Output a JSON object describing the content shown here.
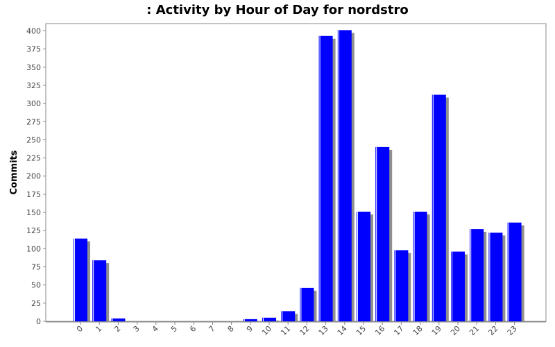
{
  "chart_data": {
    "type": "bar",
    "title": ": Activity by Hour of Day for nordstro",
    "xlabel": "",
    "ylabel": "Commits",
    "categories": [
      "0",
      "1",
      "2",
      "3",
      "4",
      "5",
      "6",
      "7",
      "8",
      "9",
      "10",
      "11",
      "12",
      "13",
      "14",
      "15",
      "16",
      "17",
      "18",
      "19",
      "20",
      "21",
      "22",
      "23"
    ],
    "values": [
      114,
      84,
      4,
      0,
      0,
      0,
      0,
      0,
      0,
      3,
      5,
      14,
      46,
      393,
      401,
      151,
      240,
      98,
      151,
      312,
      96,
      127,
      122,
      136
    ],
    "ylim": [
      0,
      410
    ],
    "yticks": [
      0,
      25,
      50,
      75,
      100,
      125,
      150,
      175,
      200,
      225,
      250,
      275,
      300,
      325,
      350,
      375,
      400
    ],
    "grid": false,
    "colors": {
      "bar": "#0000ff",
      "shadow": "#909090",
      "bar_edge": "#ffffff"
    }
  }
}
